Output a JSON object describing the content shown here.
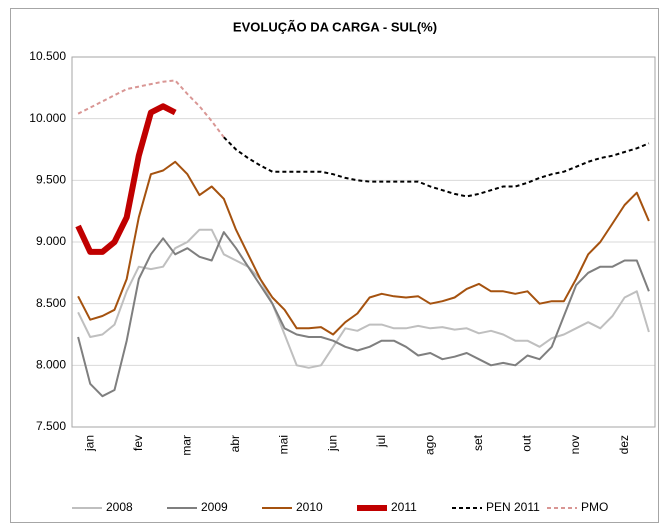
{
  "chart_data": {
    "type": "line",
    "title": "EVOLUÇÃO DA CARGA - SUL(%)",
    "categories": [
      null,
      "jan",
      null,
      null,
      null,
      "fev",
      null,
      null,
      null,
      "mar",
      null,
      null,
      null,
      "abr",
      null,
      null,
      null,
      "mai",
      null,
      null,
      null,
      "jun",
      null,
      null,
      null,
      "jul",
      null,
      null,
      null,
      "ago",
      null,
      null,
      null,
      "set",
      null,
      null,
      null,
      "out",
      null,
      null,
      null,
      "nov",
      null,
      null,
      null,
      "dez",
      null,
      null
    ],
    "ylim": [
      7500,
      10500
    ],
    "yticks": [
      {
        "value": 7500,
        "label": "7.500"
      },
      {
        "value": 8000,
        "label": "8.000"
      },
      {
        "value": 8500,
        "label": "8.500"
      },
      {
        "value": 9000,
        "label": "9.000"
      },
      {
        "value": 9500,
        "label": "9.500"
      },
      {
        "value": 10000,
        "label": "10.000"
      },
      {
        "value": 10500,
        "label": "10.500"
      }
    ],
    "grid": true,
    "legend": "bottom",
    "series": [
      {
        "name": "2008",
        "color": "#bfbfbf",
        "width": 2,
        "dashed": false,
        "values": [
          8430,
          8230,
          8250,
          8330,
          8600,
          8800,
          8780,
          8800,
          8950,
          9000,
          9100,
          9100,
          8900,
          8850,
          8800,
          8700,
          8500,
          8250,
          8000,
          7980,
          8000,
          8150,
          8300,
          8280,
          8330,
          8330,
          8300,
          8300,
          8320,
          8300,
          8310,
          8290,
          8300,
          8260,
          8280,
          8250,
          8200,
          8200,
          8150,
          8220,
          8250,
          8300,
          8350,
          8300,
          8400,
          8550,
          8600,
          8270
        ]
      },
      {
        "name": "2009",
        "color": "#7f7f7f",
        "width": 2,
        "dashed": false,
        "values": [
          8230,
          7850,
          7750,
          7800,
          8200,
          8700,
          8900,
          9030,
          8900,
          8950,
          8880,
          8850,
          9080,
          8950,
          8800,
          8650,
          8500,
          8300,
          8250,
          8230,
          8230,
          8200,
          8150,
          8120,
          8150,
          8200,
          8200,
          8150,
          8080,
          8100,
          8050,
          8070,
          8100,
          8050,
          8000,
          8020,
          8000,
          8080,
          8050,
          8150,
          8400,
          8650,
          8750,
          8800,
          8800,
          8850,
          8850,
          8600
        ]
      },
      {
        "name": "2010",
        "color": "#a5520f",
        "width": 2,
        "dashed": false,
        "values": [
          8560,
          8370,
          8400,
          8450,
          8700,
          9200,
          9550,
          9580,
          9650,
          9550,
          9380,
          9450,
          9350,
          9100,
          8900,
          8700,
          8550,
          8450,
          8300,
          8300,
          8310,
          8250,
          8350,
          8420,
          8550,
          8580,
          8560,
          8550,
          8560,
          8500,
          8520,
          8550,
          8620,
          8660,
          8600,
          8600,
          8580,
          8600,
          8500,
          8520,
          8520,
          8700,
          8900,
          9000,
          9150,
          9300,
          9400,
          9170
        ]
      },
      {
        "name": "2011",
        "color": "#c00000",
        "width": 6,
        "dashed": false,
        "values": [
          9130,
          8920,
          8920,
          9000,
          9200,
          9700,
          10050,
          10100,
          10050,
          null,
          null,
          null,
          null,
          null,
          null,
          null,
          null,
          null,
          null,
          null,
          null,
          null,
          null,
          null,
          null,
          null,
          null,
          null,
          null,
          null,
          null,
          null,
          null,
          null,
          null,
          null,
          null,
          null,
          null,
          null,
          null,
          null,
          null,
          null,
          null,
          null,
          null,
          null
        ]
      },
      {
        "name": "PEN 2011",
        "color": "#000000",
        "width": 2,
        "dashed": true,
        "values": [
          null,
          null,
          null,
          null,
          null,
          null,
          null,
          null,
          null,
          null,
          null,
          null,
          9850,
          9750,
          9680,
          9620,
          9570,
          9570,
          9570,
          9570,
          9570,
          9550,
          9520,
          9500,
          9490,
          9490,
          9490,
          9490,
          9490,
          9450,
          9420,
          9390,
          9370,
          9390,
          9420,
          9450,
          9450,
          9480,
          9520,
          9550,
          9570,
          9610,
          9650,
          9680,
          9700,
          9730,
          9760,
          9800
        ]
      },
      {
        "name": "PMO",
        "color": "#d99694",
        "width": 2,
        "dashed": true,
        "values": [
          10040,
          10090,
          10140,
          10190,
          10240,
          10260,
          10280,
          10300,
          10310,
          10200,
          10100,
          9980,
          9850,
          null,
          null,
          null,
          null,
          null,
          null,
          null,
          null,
          null,
          null,
          null,
          null,
          null,
          null,
          null,
          null,
          null,
          null,
          null,
          null,
          null,
          null,
          null,
          null,
          null,
          null,
          null,
          null,
          null,
          null,
          null,
          null,
          null,
          null,
          null
        ]
      }
    ]
  }
}
